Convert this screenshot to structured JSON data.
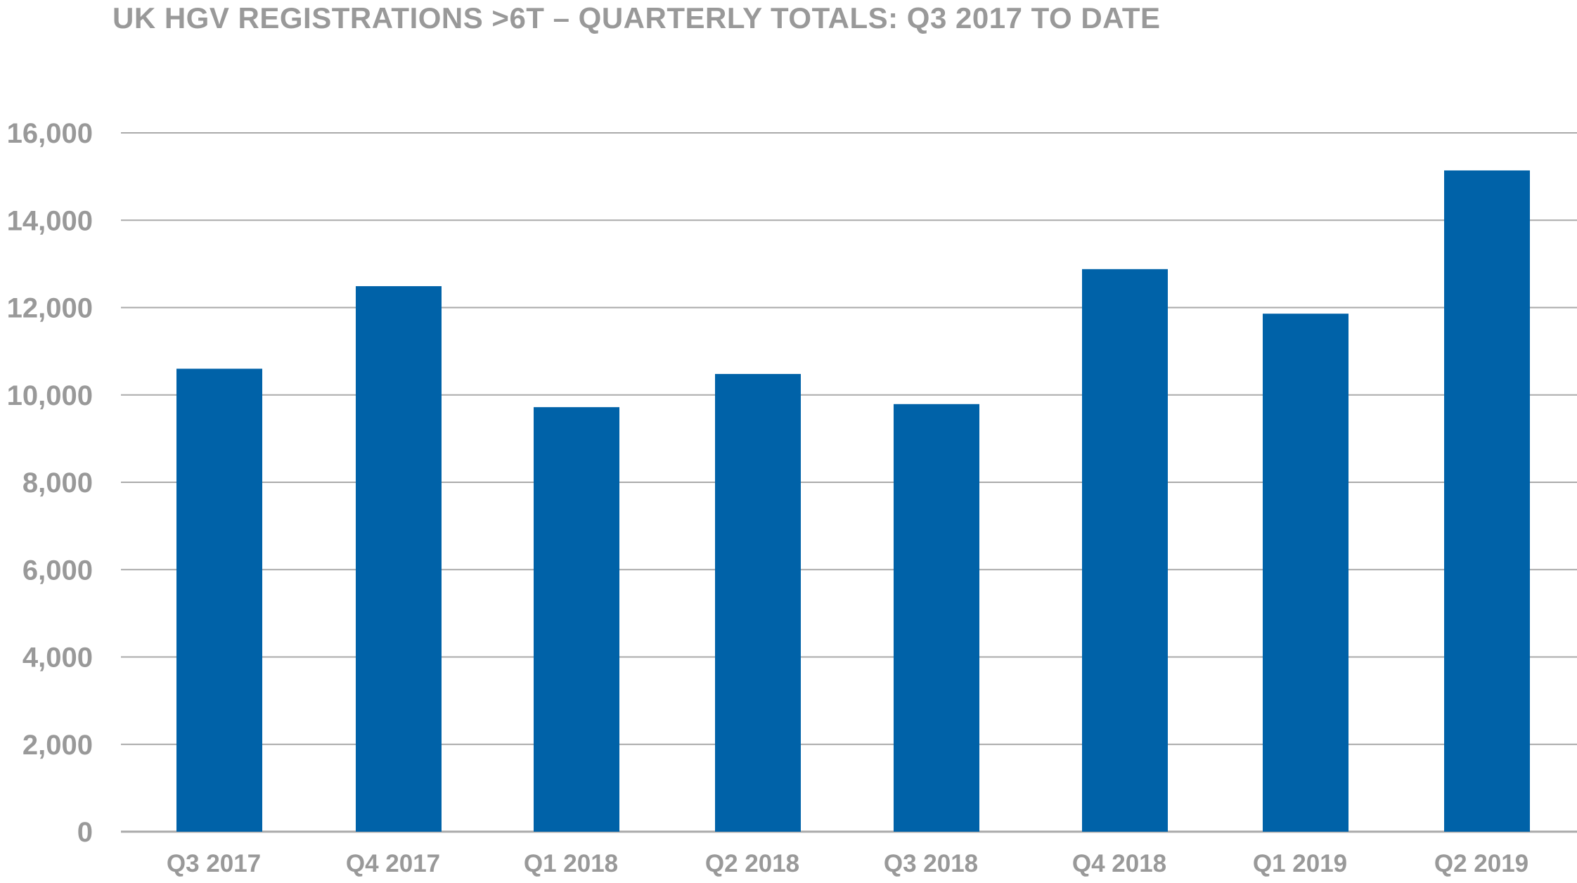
{
  "chart_data": {
    "type": "bar",
    "title": "UK HGV REGISTRATIONS >6T – QUARTERLY TOTALS: Q3 2017 TO DATE",
    "xlabel": "",
    "ylabel": "",
    "categories": [
      "Q3 2017",
      "Q4 2017",
      "Q1 2018",
      "Q2 2018",
      "Q3 2018",
      "Q4 2018",
      "Q1 2019",
      "Q2 2019"
    ],
    "values": [
      10600,
      12490,
      9720,
      10480,
      9790,
      12880,
      11860,
      15140
    ],
    "ylim": [
      0,
      16000
    ],
    "yticks": [
      0,
      2000,
      4000,
      6000,
      8000,
      10000,
      12000,
      14000,
      16000
    ],
    "ytick_labels": [
      "0",
      "2,000",
      "4,000",
      "6,000",
      "8,000",
      "10,000",
      "12,000",
      "14,000",
      "16,000"
    ],
    "grid": true,
    "legend": "none",
    "bar_color": "#0062a8",
    "grid_color": "#aaaaaa",
    "text_color": "#999999"
  }
}
